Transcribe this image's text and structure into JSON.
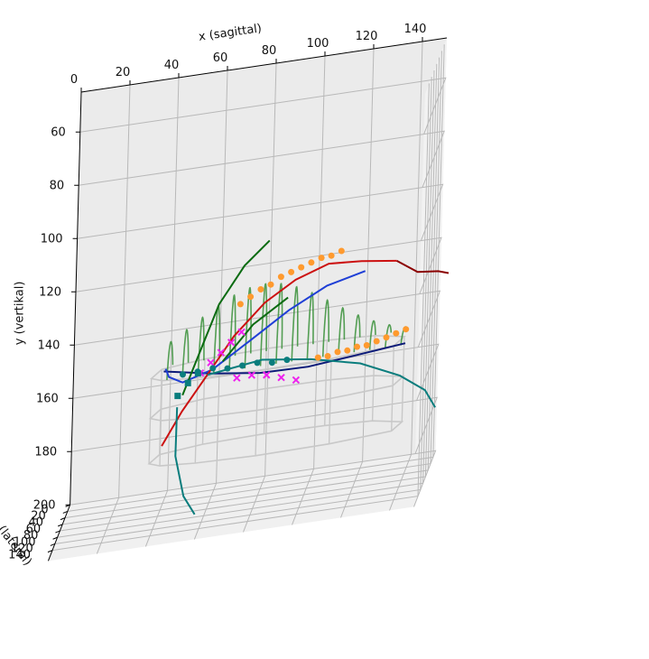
{
  "chart_data": {
    "type": "line",
    "projection": "3d",
    "axes": {
      "x": {
        "label": "x (sagittal)",
        "range": [
          0,
          150
        ],
        "ticks": [
          "0",
          "20",
          "40",
          "60",
          "80",
          "100",
          "120",
          "140"
        ]
      },
      "y": {
        "label": "y (vertikal)",
        "range": [
          45,
          200
        ],
        "inverted": true,
        "ticks": [
          "60",
          "80",
          "100",
          "120",
          "140",
          "160",
          "180",
          "200"
        ]
      },
      "z": {
        "label": "z (lateral)",
        "range": [
          0,
          150
        ],
        "ticks": [
          "0",
          "20",
          "40",
          "60",
          "80",
          "100",
          "120",
          "140"
        ]
      }
    },
    "grid": true,
    "colors": {
      "wireframe": "#c8c8c8",
      "surface": "#2e8b2e",
      "blue": "#1f3fd6",
      "navy": "#0b1a78",
      "red": "#cc1111",
      "darkred": "#8b0000",
      "green": "#0b6b11",
      "teal": "#0a7d7d",
      "orange": "#ff9a2e",
      "magenta": "#ee22ee"
    },
    "series": [
      {
        "kind": "wireframe",
        "color": "wireframe",
        "rings": [
          [
            [
              35,
              150,
              60
            ],
            [
              38,
              150,
              35
            ],
            [
              55,
              150,
              22
            ],
            [
              80,
              150,
              18
            ],
            [
              105,
              150,
              20
            ],
            [
              125,
              150,
              28
            ],
            [
              138,
              150,
              45
            ],
            [
              135,
              150,
              70
            ],
            [
              110,
              150,
              82
            ],
            [
              80,
              150,
              85
            ],
            [
              55,
              150,
              80
            ],
            [
              40,
              150,
              72
            ]
          ],
          [
            [
              35,
              165,
              60
            ],
            [
              38,
              165,
              35
            ],
            [
              55,
              165,
              22
            ],
            [
              80,
              165,
              18
            ],
            [
              105,
              165,
              20
            ],
            [
              125,
              165,
              28
            ],
            [
              138,
              165,
              45
            ],
            [
              135,
              165,
              70
            ],
            [
              110,
              165,
              82
            ],
            [
              80,
              165,
              85
            ],
            [
              55,
              165,
              80
            ],
            [
              40,
              165,
              72
            ]
          ],
          [
            [
              35,
              182,
              60
            ],
            [
              38,
              182,
              35
            ],
            [
              55,
              182,
              22
            ],
            [
              80,
              182,
              18
            ],
            [
              105,
              182,
              20
            ],
            [
              125,
              182,
              28
            ],
            [
              138,
              182,
              45
            ],
            [
              135,
              182,
              70
            ],
            [
              110,
              182,
              82
            ],
            [
              80,
              182,
              85
            ],
            [
              55,
              182,
              80
            ],
            [
              40,
              182,
              72
            ]
          ]
        ]
      },
      {
        "kind": "surface",
        "color": "surface",
        "z_front": 72,
        "z_back": 26,
        "y_base": 150,
        "x_start": 42,
        "x_end": 138,
        "count": 16,
        "peak": [
          80,
          122
        ]
      },
      {
        "kind": "line",
        "color": "navy",
        "points": [
          [
            40,
            148,
            60
          ],
          [
            60,
            151,
            64
          ],
          [
            80,
            153,
            68
          ],
          [
            100,
            153,
            71
          ],
          [
            120,
            151,
            74
          ],
          [
            140,
            149,
            76
          ]
        ]
      },
      {
        "kind": "line",
        "color": "blue",
        "points": [
          [
            40,
            149,
            44
          ],
          [
            42,
            151,
            55
          ],
          [
            48,
            153,
            62
          ],
          [
            60,
            150,
            60
          ],
          [
            75,
            142,
            52
          ],
          [
            90,
            134,
            42
          ],
          [
            105,
            128,
            32
          ],
          [
            120,
            126,
            20
          ]
        ]
      },
      {
        "kind": "line",
        "color": "red",
        "points": [
          [
            40,
            176,
            60
          ],
          [
            48,
            164,
            60
          ],
          [
            58,
            152,
            55
          ],
          [
            68,
            140,
            48
          ],
          [
            80,
            130,
            40
          ],
          [
            92,
            124,
            32
          ],
          [
            105,
            121,
            22
          ],
          [
            118,
            123,
            12
          ],
          [
            132,
            126,
            2
          ]
        ]
      },
      {
        "kind": "line",
        "color": "darkred",
        "points": [
          [
            132,
            126,
            2
          ],
          [
            140,
            133,
            -12
          ],
          [
            148,
            135,
            -22
          ],
          [
            152,
            137,
            -28
          ]
        ]
      },
      {
        "kind": "line",
        "color": "green",
        "points": [
          [
            48,
            158,
            60
          ],
          [
            55,
            142,
            58
          ],
          [
            62,
            126,
            58
          ],
          [
            72,
            113,
            57
          ],
          [
            82,
            105,
            56
          ]
        ]
      },
      {
        "kind": "line",
        "color": "green",
        "points": [
          [
            64,
            148,
            56
          ],
          [
            76,
            136,
            54
          ],
          [
            90,
            128,
            52
          ]
        ]
      },
      {
        "kind": "line",
        "color": "teal",
        "points": [
          [
            46,
            162,
            62
          ],
          [
            46,
            180,
            65
          ],
          [
            50,
            195,
            70
          ],
          [
            55,
            202,
            74
          ]
        ]
      },
      {
        "kind": "line",
        "color": "teal",
        "points": [
          [
            58,
            152,
            58
          ],
          [
            80,
            150,
            52
          ],
          [
            100,
            153,
            48
          ],
          [
            120,
            158,
            42
          ],
          [
            136,
            166,
            32
          ],
          [
            146,
            174,
            22
          ],
          [
            150,
            182,
            14
          ]
        ]
      },
      {
        "kind": "scatter",
        "color": "orange",
        "marker": "circle",
        "points": [
          [
            70,
            129,
            42
          ],
          [
            74,
            127,
            40
          ],
          [
            78,
            125,
            38
          ],
          [
            82,
            124,
            36
          ],
          [
            86,
            122,
            33
          ],
          [
            90,
            121,
            31
          ],
          [
            94,
            120,
            29
          ],
          [
            98,
            119,
            27
          ],
          [
            102,
            118,
            25
          ],
          [
            106,
            118,
            23
          ],
          [
            110,
            117,
            21
          ],
          [
            104,
            150,
            72
          ],
          [
            108,
            150,
            72
          ],
          [
            112,
            149,
            72
          ],
          [
            116,
            149,
            72
          ],
          [
            120,
            148,
            73
          ],
          [
            124,
            148,
            73
          ],
          [
            128,
            147,
            73
          ],
          [
            132,
            146,
            74
          ],
          [
            136,
            145,
            74
          ],
          [
            140,
            144,
            74
          ]
        ]
      },
      {
        "kind": "scatter",
        "color": "magenta",
        "marker": "x",
        "points": [
          [
            55,
            151,
            57
          ],
          [
            59,
            148,
            54
          ],
          [
            63,
            145,
            52
          ],
          [
            67,
            142,
            50
          ],
          [
            71,
            139,
            47
          ],
          [
            70,
            155,
            56
          ],
          [
            76,
            155,
            54
          ],
          [
            82,
            156,
            52
          ],
          [
            88,
            158,
            50
          ],
          [
            94,
            160,
            48
          ]
        ]
      },
      {
        "kind": "scatter",
        "color": "teal",
        "marker": "circle",
        "points": [
          [
            48,
            150,
            62
          ],
          [
            54,
            150,
            60
          ],
          [
            60,
            150,
            56
          ],
          [
            66,
            151,
            55
          ],
          [
            72,
            151,
            53
          ],
          [
            78,
            151,
            51
          ],
          [
            84,
            152,
            49
          ],
          [
            90,
            152,
            47
          ]
        ]
      },
      {
        "kind": "scatter",
        "color": "teal",
        "marker": "square",
        "points": [
          [
            46,
            158,
            60
          ],
          [
            50,
            154,
            58
          ],
          [
            54,
            151,
            57
          ]
        ]
      }
    ]
  }
}
